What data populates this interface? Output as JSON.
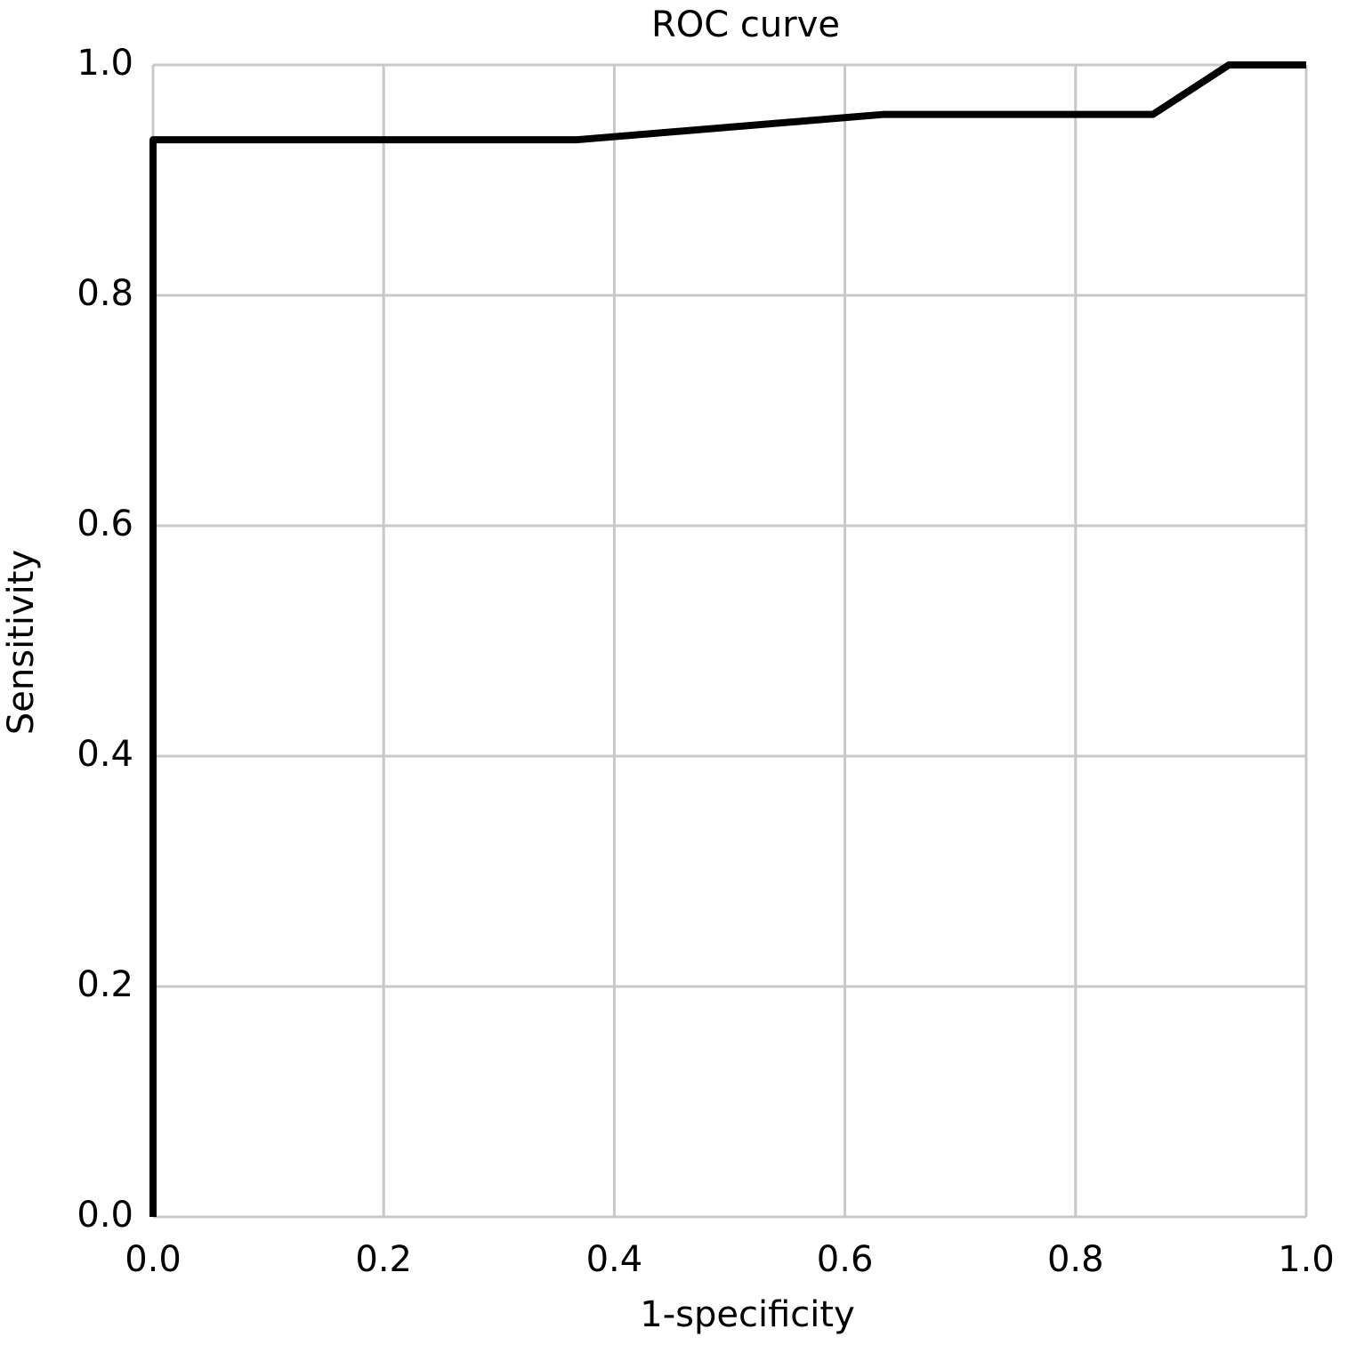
{
  "chart_data": {
    "type": "line",
    "title": "ROC curve",
    "x_label": "1-specificity",
    "y_label": "Sensitivity",
    "series": [
      {
        "name": "ROC",
        "color": "#000000",
        "x": [
          0,
          0,
          0.367,
          0.633,
          0.867,
          0.933,
          1.0
        ],
        "values": [
          0,
          0.935,
          0.935,
          0.957,
          0.957,
          1.0,
          1.0
        ]
      }
    ],
    "xlim": [
      0,
      1
    ],
    "ylim": [
      0,
      1
    ],
    "xticks": [
      {
        "value": 0,
        "label": "0.0"
      },
      0.2,
      0.4,
      0.6,
      0.8,
      {
        "value": 1,
        "label": "1.0"
      }
    ],
    "yticks": [
      {
        "value": 0,
        "label": "0.0"
      },
      0.2,
      0.4,
      0.6,
      0.8,
      {
        "value": 1,
        "label": "1.0"
      }
    ],
    "grid": true
  }
}
